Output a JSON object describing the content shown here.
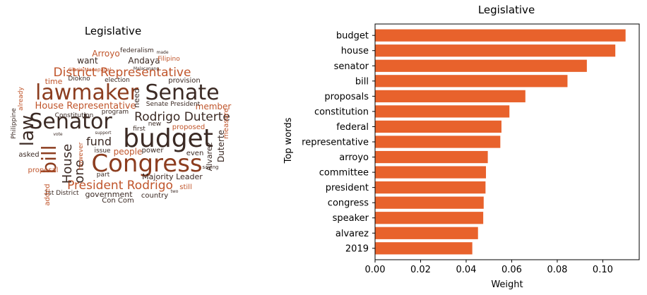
{
  "wordcloud": {
    "title": "Legislative",
    "palette": [
      "#3b2a24",
      "#8c3d1f",
      "#c0552b",
      "#e0602a",
      "#5a4a44"
    ],
    "words": [
      {
        "text": "budget",
        "weight": 1.0
      },
      {
        "text": "Congress",
        "weight": 0.95
      },
      {
        "text": "Senator",
        "weight": 0.9
      },
      {
        "text": "lawmaker",
        "weight": 0.85
      },
      {
        "text": "Senate",
        "weight": 0.85
      },
      {
        "text": "bill",
        "weight": 0.8
      },
      {
        "text": "law",
        "weight": 0.75
      },
      {
        "text": "District Representative",
        "weight": 0.55
      },
      {
        "text": "Rodrigo Duterte",
        "weight": 0.55
      },
      {
        "text": "President Rodrigo",
        "weight": 0.55
      },
      {
        "text": "House",
        "weight": 0.5
      },
      {
        "text": "one",
        "weight": 0.5
      },
      {
        "text": "fund",
        "weight": 0.45
      },
      {
        "text": "House Representative",
        "weight": 0.4
      },
      {
        "text": "Arroyo",
        "weight": 0.35
      },
      {
        "text": "Andaya",
        "weight": 0.35
      },
      {
        "text": "member",
        "weight": 0.35
      },
      {
        "text": "people",
        "weight": 0.3
      },
      {
        "text": "government",
        "weight": 0.3
      },
      {
        "text": "Majority Leader",
        "weight": 0.3
      },
      {
        "text": "Duterte",
        "weight": 0.3
      },
      {
        "text": "Alvarez",
        "weight": 0.3
      },
      {
        "text": "proposed",
        "weight": 0.28
      },
      {
        "text": "want",
        "weight": 0.28
      },
      {
        "text": "time",
        "weight": 0.28
      },
      {
        "text": "power",
        "weight": 0.25
      },
      {
        "text": "need",
        "weight": 0.25
      },
      {
        "text": "Constitution",
        "weight": 0.22
      },
      {
        "text": "program",
        "weight": 0.22
      },
      {
        "text": "provision",
        "weight": 0.22
      },
      {
        "text": "Senate President",
        "weight": 0.2
      },
      {
        "text": "Con Com",
        "weight": 0.22
      },
      {
        "text": "country",
        "weight": 0.2
      },
      {
        "text": "1st District",
        "weight": 0.2
      },
      {
        "text": "proposal",
        "weight": 0.2
      },
      {
        "text": "added",
        "weight": 0.2
      },
      {
        "text": "asked",
        "weight": 0.2
      },
      {
        "text": "still",
        "weight": 0.2
      },
      {
        "text": "even",
        "weight": 0.2
      },
      {
        "text": "issue",
        "weight": 0.2
      },
      {
        "text": "however",
        "weight": 0.18
      },
      {
        "text": "Philippine",
        "weight": 0.18
      },
      {
        "text": "federalism",
        "weight": 0.18
      },
      {
        "text": "Filipino",
        "weight": 0.18
      },
      {
        "text": "Diokno",
        "weight": 0.18
      },
      {
        "text": "election",
        "weight": 0.18
      },
      {
        "text": "measure",
        "weight": 0.18
      },
      {
        "text": "first",
        "weight": 0.18
      },
      {
        "text": "new",
        "weight": 0.18
      },
      {
        "text": "part",
        "weight": 0.16
      },
      {
        "text": "already",
        "weight": 0.16
      },
      {
        "text": "Gloria Macapagal",
        "weight": 0.14
      },
      {
        "text": "Malacanang",
        "weight": 0.12
      },
      {
        "text": "made",
        "weight": 0.12
      },
      {
        "text": "vote",
        "weight": 0.12
      },
      {
        "text": "saying",
        "weight": 0.12
      },
      {
        "text": "two",
        "weight": 0.12
      },
      {
        "text": "support",
        "weight": 0.12
      }
    ]
  },
  "chart_data": {
    "type": "bar",
    "orientation": "horizontal",
    "title": "Legislative",
    "xlabel": "Weight",
    "ylabel": "Top words",
    "bar_color": "#e8622c",
    "xlim": [
      0,
      0.116
    ],
    "xticks": [
      0.0,
      0.02,
      0.04,
      0.06,
      0.08,
      0.1
    ],
    "xtick_labels": [
      "0.00",
      "0.02",
      "0.04",
      "0.06",
      "0.08",
      "0.10"
    ],
    "categories": [
      "budget",
      "house",
      "senator",
      "bill",
      "proposals",
      "constitution",
      "federal",
      "representative",
      "arroyo",
      "committee",
      "president",
      "congress",
      "speaker",
      "alvarez",
      "2019"
    ],
    "values": [
      0.11,
      0.1055,
      0.093,
      0.0845,
      0.066,
      0.059,
      0.0555,
      0.055,
      0.0495,
      0.0487,
      0.0485,
      0.0477,
      0.0475,
      0.0452,
      0.0427
    ]
  }
}
